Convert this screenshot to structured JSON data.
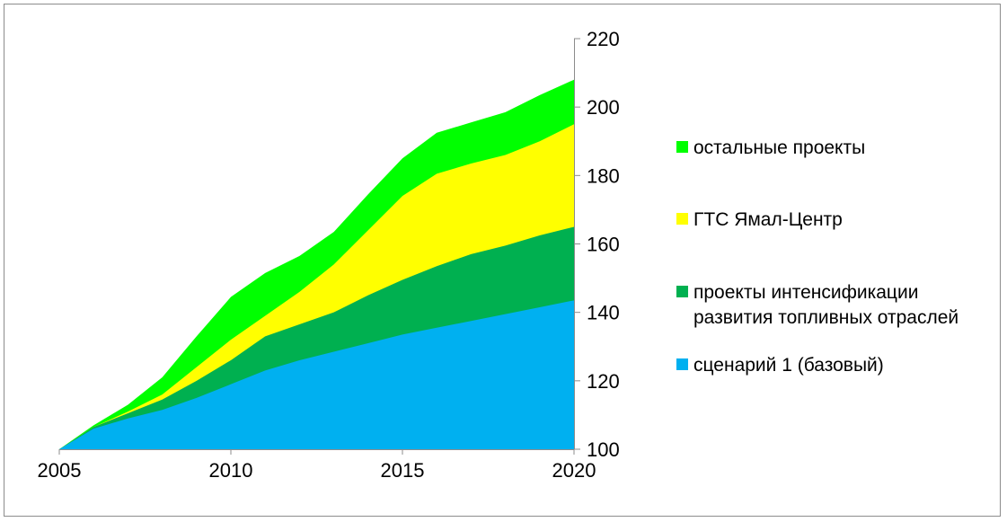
{
  "chart_data": {
    "type": "area",
    "stacked": true,
    "x": [
      2005,
      2006,
      2007,
      2008,
      2009,
      2010,
      2011,
      2012,
      2013,
      2014,
      2015,
      2016,
      2017,
      2018,
      2019,
      2020
    ],
    "x_ticks": [
      "2005",
      "2010",
      "2015",
      "2020"
    ],
    "y_ticks": [
      "100",
      "120",
      "140",
      "160",
      "180",
      "200",
      "220"
    ],
    "ylim": [
      100,
      220
    ],
    "xlim": [
      2005,
      2020
    ],
    "y_axis_side": "right",
    "legend_position": "right",
    "grid": false,
    "series": [
      {
        "name": "сценарий 1 (базовый)",
        "color": "#00b0f0",
        "cumulative": [
          100,
          106,
          109,
          111.5,
          115,
          119,
          123,
          126,
          128.5,
          131,
          133.5,
          135.5,
          137.5,
          139.5,
          141.5,
          143.5
        ]
      },
      {
        "name": "проекты интенсификации развития топливных отраслей",
        "color": "#00b050",
        "cumulative": [
          100,
          106.5,
          110.5,
          114.5,
          120,
          126,
          133,
          136.5,
          140,
          145,
          149.5,
          153.5,
          157,
          159.5,
          162.5,
          165
        ]
      },
      {
        "name": "ГТС Ямал-Центр",
        "color": "#ffff00",
        "cumulative": [
          100,
          106.5,
          111,
          116,
          124,
          132,
          139,
          146,
          154,
          164,
          174,
          180.5,
          183.5,
          186,
          190,
          195
        ]
      },
      {
        "name": "остальные проекты",
        "color": "#00ff00",
        "cumulative": [
          100,
          107,
          113,
          121,
          133,
          144.5,
          151.5,
          156.5,
          163.5,
          174.5,
          185,
          192.5,
          195.5,
          198.5,
          203.5,
          208
        ]
      }
    ],
    "legend_order": [
      "остальные проекты",
      "ГТС Ямал-Центр",
      "проекты интенсификации\nразвития топливных отраслей",
      "сценарий 1 (базовый)"
    ]
  }
}
